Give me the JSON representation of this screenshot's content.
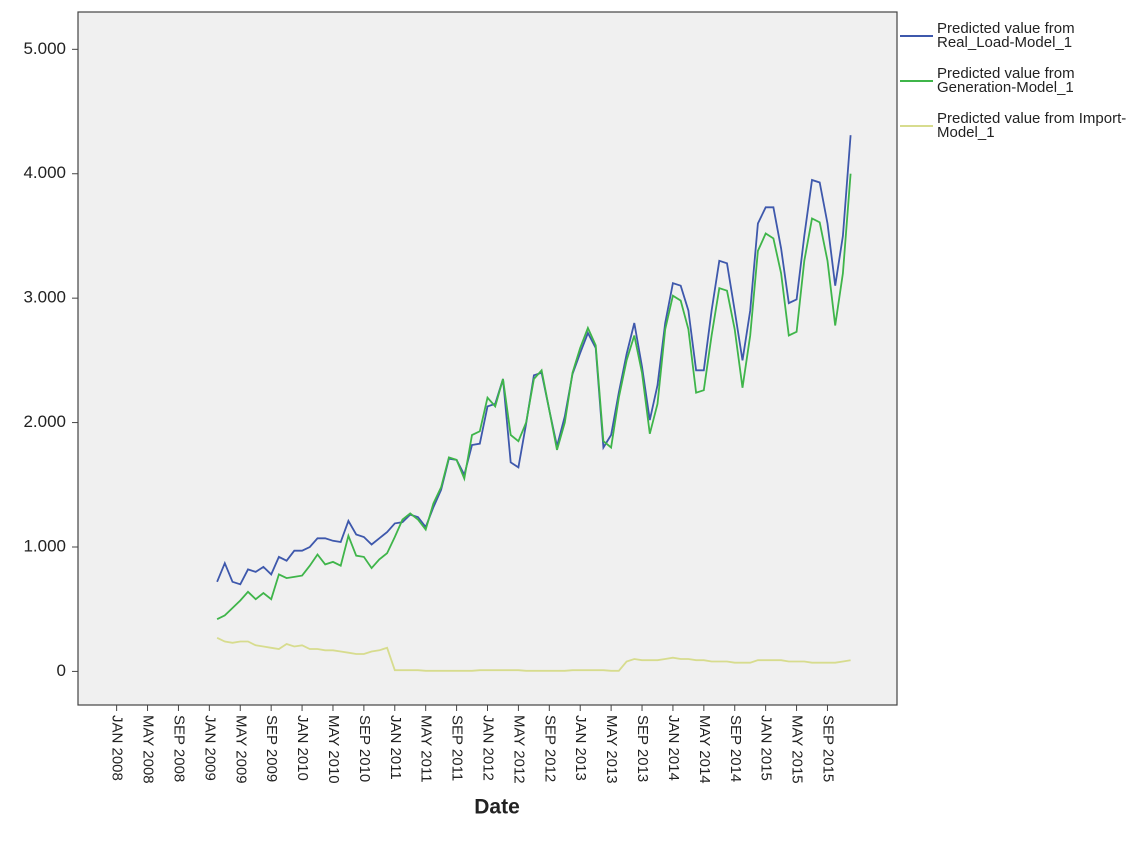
{
  "chart_data": {
    "type": "line",
    "x_label": "Date",
    "x": [
      "2009-02",
      "2009-03",
      "2009-04",
      "2009-05",
      "2009-06",
      "2009-07",
      "2009-08",
      "2009-09",
      "2009-10",
      "2009-11",
      "2009-12",
      "2010-01",
      "2010-02",
      "2010-03",
      "2010-04",
      "2010-05",
      "2010-06",
      "2010-07",
      "2010-08",
      "2010-09",
      "2010-10",
      "2010-11",
      "2010-12",
      "2011-01",
      "2011-02",
      "2011-03",
      "2011-04",
      "2011-05",
      "2011-06",
      "2011-07",
      "2011-08",
      "2011-09",
      "2011-10",
      "2011-11",
      "2011-12",
      "2012-01",
      "2012-02",
      "2012-03",
      "2012-04",
      "2012-05",
      "2012-06",
      "2012-07",
      "2012-08",
      "2012-09",
      "2012-10",
      "2012-11",
      "2012-12",
      "2013-01",
      "2013-02",
      "2013-03",
      "2013-04",
      "2013-05",
      "2013-06",
      "2013-07",
      "2013-08",
      "2013-09",
      "2013-10",
      "2013-11",
      "2013-12",
      "2014-01",
      "2014-02",
      "2014-03",
      "2014-04",
      "2014-05",
      "2014-06",
      "2014-07",
      "2014-08",
      "2014-09",
      "2014-10",
      "2014-11",
      "2014-12",
      "2015-01",
      "2015-02",
      "2015-03",
      "2015-04",
      "2015-05",
      "2015-06",
      "2015-07",
      "2015-08",
      "2015-09",
      "2015-10",
      "2015-11",
      "2015-12"
    ],
    "series": [
      {
        "name": "Predicted value from Real_Load-Model_1",
        "color": "#3e58ac",
        "values": [
          720,
          870,
          720,
          700,
          820,
          800,
          840,
          780,
          920,
          890,
          970,
          970,
          1000,
          1070,
          1070,
          1050,
          1040,
          1210,
          1100,
          1080,
          1020,
          1070,
          1120,
          1190,
          1200,
          1260,
          1240,
          1160,
          1320,
          1460,
          1710,
          1700,
          1580,
          1820,
          1830,
          2130,
          2150,
          2350,
          1680,
          1640,
          1990,
          2380,
          2400,
          2100,
          1810,
          2050,
          2390,
          2560,
          2720,
          2600,
          1800,
          1900,
          2240,
          2550,
          2800,
          2450,
          2020,
          2300,
          2800,
          3120,
          3100,
          2900,
          2420,
          2420,
          2900,
          3300,
          3280,
          2900,
          2500,
          2900,
          3600,
          3730,
          3730,
          3400,
          2960,
          2990,
          3500,
          3950,
          3930,
          3600,
          3100,
          3500,
          4310
        ]
      },
      {
        "name": "Predicted value from Generation-Model_1",
        "color": "#3fb54a",
        "values": [
          420,
          450,
          510,
          570,
          640,
          580,
          630,
          580,
          780,
          750,
          760,
          770,
          850,
          940,
          860,
          880,
          850,
          1090,
          930,
          920,
          830,
          900,
          950,
          1080,
          1220,
          1270,
          1220,
          1140,
          1350,
          1480,
          1720,
          1700,
          1550,
          1900,
          1930,
          2200,
          2130,
          2350,
          1900,
          1850,
          2000,
          2350,
          2420,
          2100,
          1780,
          2000,
          2400,
          2600,
          2760,
          2620,
          1850,
          1800,
          2200,
          2500,
          2700,
          2400,
          1910,
          2150,
          2750,
          3020,
          2980,
          2750,
          2240,
          2260,
          2700,
          3080,
          3060,
          2750,
          2280,
          2700,
          3380,
          3520,
          3480,
          3200,
          2700,
          2730,
          3300,
          3640,
          3610,
          3300,
          2780,
          3200,
          4000
        ]
      },
      {
        "name": "Predicted value from Import-Model_1",
        "color": "#d7dc8e",
        "values": [
          270,
          240,
          230,
          240,
          240,
          210,
          200,
          190,
          180,
          220,
          200,
          210,
          180,
          180,
          170,
          170,
          160,
          150,
          140,
          140,
          160,
          170,
          190,
          10,
          10,
          10,
          10,
          5,
          5,
          5,
          5,
          5,
          5,
          5,
          10,
          10,
          10,
          10,
          10,
          10,
          5,
          5,
          5,
          5,
          5,
          5,
          10,
          10,
          10,
          10,
          10,
          5,
          5,
          80,
          100,
          90,
          90,
          90,
          100,
          110,
          100,
          100,
          90,
          90,
          80,
          80,
          80,
          70,
          70,
          70,
          90,
          90,
          90,
          90,
          80,
          80,
          80,
          70,
          70,
          70,
          70,
          80,
          90
        ]
      }
    ],
    "xlim": [
      "2007-08",
      "2016-06"
    ],
    "xticks": [
      {
        "value": "2008-01",
        "label": "JAN 2008"
      },
      {
        "value": "2008-05",
        "label": "MAY 2008"
      },
      {
        "value": "2008-09",
        "label": "SEP 2008"
      },
      {
        "value": "2009-01",
        "label": "JAN 2009"
      },
      {
        "value": "2009-05",
        "label": "MAY 2009"
      },
      {
        "value": "2009-09",
        "label": "SEP 2009"
      },
      {
        "value": "2010-01",
        "label": "JAN 2010"
      },
      {
        "value": "2010-05",
        "label": "MAY 2010"
      },
      {
        "value": "2010-09",
        "label": "SEP 2010"
      },
      {
        "value": "2011-01",
        "label": "JAN 2011"
      },
      {
        "value": "2011-05",
        "label": "MAY 2011"
      },
      {
        "value": "2011-09",
        "label": "SEP 2011"
      },
      {
        "value": "2012-01",
        "label": "JAN 2012"
      },
      {
        "value": "2012-05",
        "label": "MAY 2012"
      },
      {
        "value": "2012-09",
        "label": "SEP 2012"
      },
      {
        "value": "2013-01",
        "label": "JAN 2013"
      },
      {
        "value": "2013-05",
        "label": "MAY 2013"
      },
      {
        "value": "2013-09",
        "label": "SEP 2013"
      },
      {
        "value": "2014-01",
        "label": "JAN 2014"
      },
      {
        "value": "2014-05",
        "label": "MAY 2014"
      },
      {
        "value": "2014-09",
        "label": "SEP 2014"
      },
      {
        "value": "2015-01",
        "label": "JAN 2015"
      },
      {
        "value": "2015-05",
        "label": "MAY 2015"
      },
      {
        "value": "2015-09",
        "label": "SEP 2015"
      }
    ],
    "ylim": [
      -270,
      5300
    ],
    "yticks": [
      0,
      {
        "value": 1000,
        "label": "1.000"
      },
      {
        "value": 2000,
        "label": "2.000"
      },
      {
        "value": 3000,
        "label": "3.000"
      },
      {
        "value": 4000,
        "label": "4.000"
      },
      {
        "value": 5000,
        "label": "5.000"
      }
    ],
    "legend": "right"
  }
}
